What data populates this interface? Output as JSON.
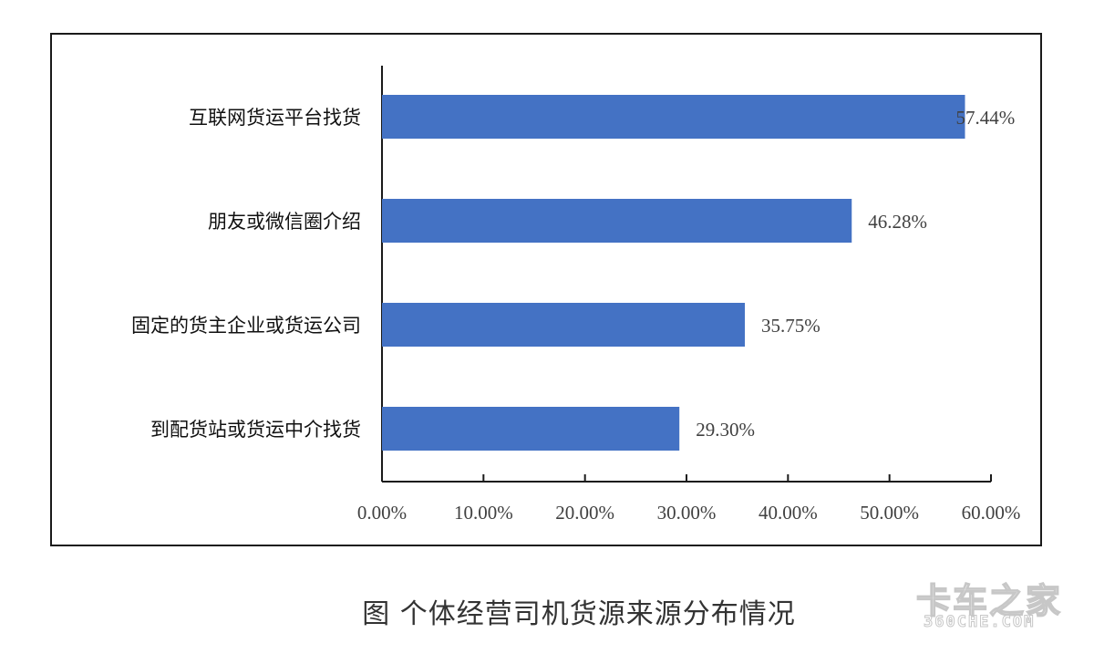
{
  "chart_data": {
    "type": "bar",
    "orientation": "horizontal",
    "categories": [
      "互联网货运平台找货",
      "朋友或微信圈介绍",
      "固定的货主企业或货运公司",
      "到配货站或货运中介找货"
    ],
    "values": [
      57.44,
      46.28,
      35.75,
      29.3
    ],
    "value_labels": [
      "57.44%",
      "46.28%",
      "35.75%",
      "29.30%"
    ],
    "xlim": [
      0,
      60
    ],
    "x_ticks": [
      0,
      10,
      20,
      30,
      40,
      50,
      60
    ],
    "x_tick_labels": [
      "0.00%",
      "10.00%",
      "20.00%",
      "30.00%",
      "40.00%",
      "50.00%",
      "60.00%"
    ],
    "title": "",
    "xlabel": "",
    "ylabel": "",
    "grid": false,
    "bar_color": "#4472C4"
  },
  "caption": "图  个体经营司机货源来源分布情况",
  "watermark": {
    "main": "卡车之家",
    "sub": "360CHE.COM"
  }
}
